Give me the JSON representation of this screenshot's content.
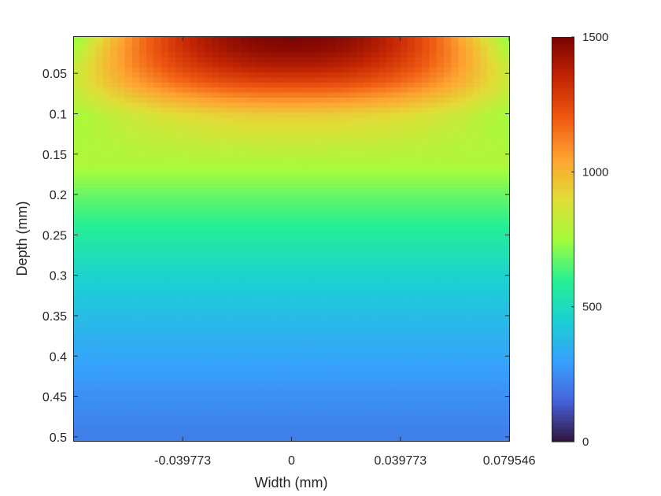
{
  "chart_data": {
    "type": "heatmap",
    "title": "",
    "xlabel": "Width (mm)",
    "ylabel": "Depth (mm)",
    "xlim": [
      -0.0795,
      0.0795
    ],
    "ylim": [
      0.005,
      0.505
    ],
    "y_reversed": true,
    "x_ticks": [
      -0.039773,
      0,
      0.039773,
      0.079546
    ],
    "x_tick_labels": [
      "-0.039773",
      "0",
      "0.039773",
      "0.079546"
    ],
    "y_ticks": [
      0.05,
      0.1,
      0.15,
      0.2,
      0.25,
      0.3,
      0.35,
      0.4,
      0.45,
      0.5
    ],
    "y_tick_labels": [
      "0.05",
      "0.1",
      "0.15",
      "0.2",
      "0.25",
      "0.3",
      "0.35",
      "0.4",
      "0.45",
      "0.5"
    ],
    "colorbar": {
      "range": [
        0,
        1500
      ],
      "ticks": [
        0,
        500,
        1000,
        1500
      ],
      "tick_labels": [
        "0",
        "500",
        "1000",
        "1500"
      ],
      "colormap": "turbo"
    },
    "depth_profile": {
      "depth": [
        0.005,
        0.02,
        0.04,
        0.06,
        0.08,
        0.1,
        0.12,
        0.15,
        0.2,
        0.25,
        0.3,
        0.35,
        0.4,
        0.45,
        0.5
      ],
      "center_value": [
        1500,
        1470,
        1390,
        1270,
        1110,
        950,
        880,
        800,
        680,
        570,
        470,
        390,
        320,
        260,
        220
      ]
    },
    "grid": false,
    "legend": "none"
  }
}
